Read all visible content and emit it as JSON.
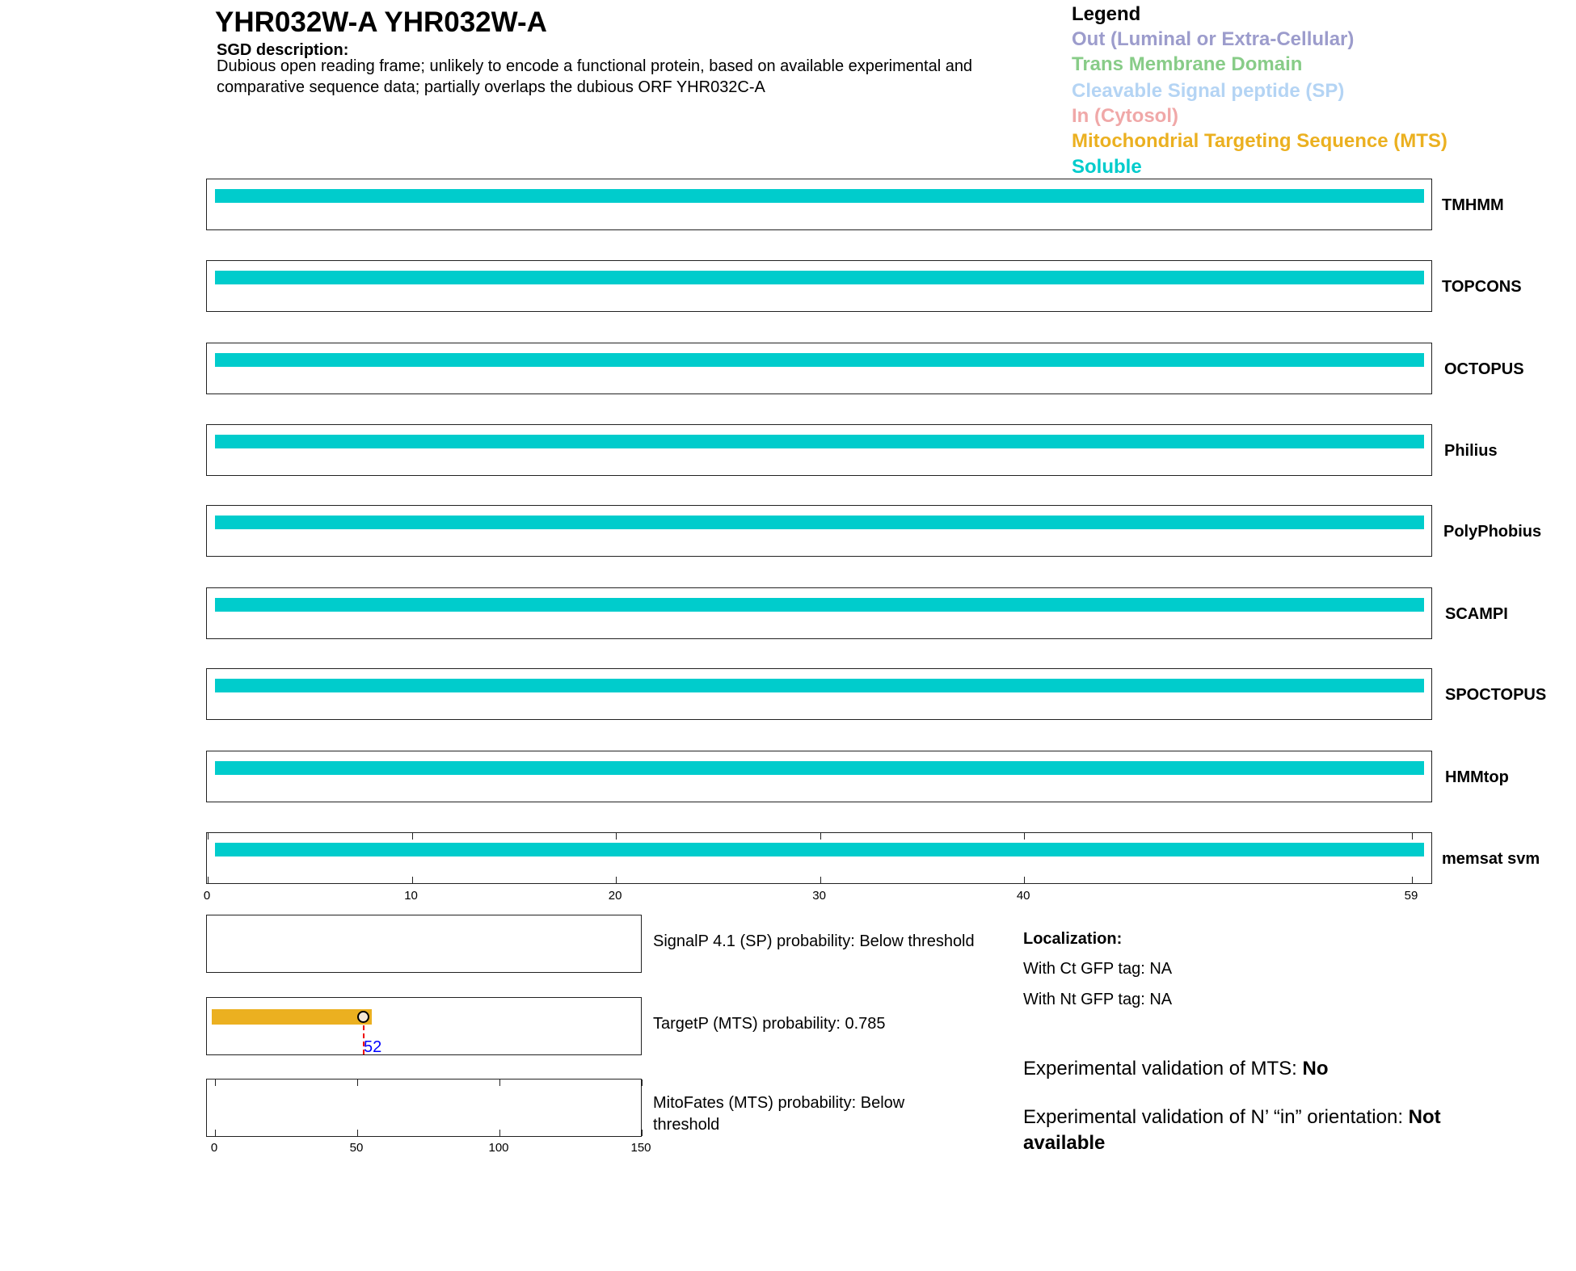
{
  "header": {
    "title": "YHR032W-A  YHR032W-A",
    "sgd_label": "SGD description:",
    "description_lines": [
      "Dubious open reading frame; unlikely to encode a functional protein, based on available experimental and",
      "comparative sequence data; partially overlaps the dubious ORF YHR032C-A"
    ]
  },
  "legend": {
    "title": "Legend",
    "items": [
      {
        "label": "Out (Luminal or Extra-Cellular)",
        "color": "#9c9ccc"
      },
      {
        "label": "Trans Membrane Domain",
        "color": "#88cc88"
      },
      {
        "label": "Cleavable Signal peptide (SP)",
        "color": "#b4d4f4"
      },
      {
        "label": "In (Cytosol)",
        "color": "#f0a8a8"
      },
      {
        "label": "Mitochondrial Targeting Sequence (MTS)",
        "color": "#ebb020"
      },
      {
        "label": "Soluble",
        "color": "#00cccc"
      }
    ]
  },
  "chart_data": [
    {
      "type": "bar",
      "title": "",
      "xlim": [
        0,
        59
      ],
      "x_ticks": [
        "0",
        "10",
        "20",
        "30",
        "40",
        "59"
      ],
      "x_tick_values": [
        0,
        10,
        20,
        30,
        40,
        59
      ],
      "tracks": [
        {
          "name": "TMHMM",
          "segments": [
            {
              "start": 1,
              "end": 59,
              "type": "Soluble"
            }
          ]
        },
        {
          "name": "TOPCONS",
          "segments": [
            {
              "start": 1,
              "end": 59,
              "type": "Soluble"
            }
          ]
        },
        {
          "name": "OCTOPUS",
          "segments": [
            {
              "start": 1,
              "end": 59,
              "type": "Soluble"
            }
          ]
        },
        {
          "name": "Philius",
          "segments": [
            {
              "start": 1,
              "end": 59,
              "type": "Soluble"
            }
          ]
        },
        {
          "name": "PolyPhobius",
          "segments": [
            {
              "start": 1,
              "end": 59,
              "type": "Soluble"
            }
          ]
        },
        {
          "name": "SCAMPI",
          "segments": [
            {
              "start": 1,
              "end": 59,
              "type": "Soluble"
            }
          ]
        },
        {
          "name": "SPOCTOPUS",
          "segments": [
            {
              "start": 1,
              "end": 59,
              "type": "Soluble"
            }
          ]
        },
        {
          "name": "HMMtop",
          "segments": [
            {
              "start": 1,
              "end": 59,
              "type": "Soluble"
            }
          ]
        },
        {
          "name": "memsat svm",
          "segments": [
            {
              "start": 1,
              "end": 59,
              "type": "Soluble"
            }
          ]
        }
      ]
    },
    {
      "type": "bar",
      "title": "",
      "xlim": [
        0,
        150
      ],
      "x_ticks": [
        "0",
        "50",
        "100",
        "150"
      ],
      "x_tick_values": [
        0,
        50,
        100,
        150
      ],
      "predictors": [
        {
          "text": "SignalP 4.1 (SP) probability: Below threshold",
          "segments": []
        },
        {
          "text": "TargetP (MTS) probability: 0.785",
          "segments": [
            {
              "start": -1,
              "end": 55,
              "type": "MTS"
            }
          ],
          "cleavage_site": 52,
          "cleavage_label": "52"
        },
        {
          "text_lines": [
            "MitoFates (MTS) probability: Below",
            "threshold"
          ],
          "segments": []
        }
      ]
    }
  ],
  "localization": {
    "title": "Localization:",
    "ct": "With Ct GFP tag: NA",
    "nt": "With Nt GFP tag: NA"
  },
  "validation": {
    "mts_label": "Experimental validation of MTS: ",
    "mts_value": "No",
    "orient_label": "Experimental validation of N’ “in” orientation: ",
    "orient_value_1": "Not",
    "orient_value_2": "available"
  }
}
